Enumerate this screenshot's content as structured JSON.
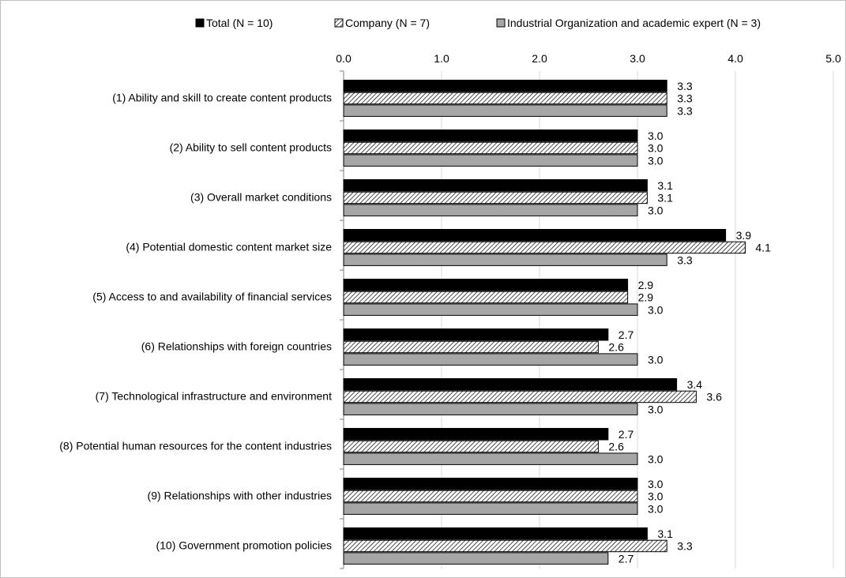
{
  "chart_data": {
    "type": "bar",
    "orientation": "horizontal",
    "categories": [
      "(1) Ability and skill to create content products",
      "(2) Ability to sell content products",
      "(3) Overall market conditions",
      "(4) Potential domestic content market size",
      "(5) Access to and availability of financial services",
      "(6) Relationships with foreign countries",
      "(7) Technological infrastructure and environment",
      "(8) Potential human resources for the content industries",
      "(9) Relationships with other industries",
      "(10) Government promotion policies"
    ],
    "series": [
      {
        "name": "Total (N = 10)",
        "fill": "solid",
        "color": "#000000",
        "values": [
          3.3,
          3.0,
          3.1,
          3.9,
          2.9,
          2.7,
          3.4,
          2.7,
          3.0,
          3.1
        ]
      },
      {
        "name": "Company (N = 7)",
        "fill": "diagonal-hatch",
        "color": "#ffffff",
        "values": [
          3.3,
          3.0,
          3.1,
          4.1,
          2.9,
          2.6,
          3.6,
          2.6,
          3.0,
          3.3
        ]
      },
      {
        "name": "Industrial Organization and academic expert (N = 3)",
        "fill": "solid",
        "color": "#a6a6a6",
        "values": [
          3.3,
          3.0,
          3.0,
          3.3,
          3.0,
          3.0,
          3.0,
          3.0,
          3.0,
          2.7
        ]
      }
    ],
    "xlim": [
      0,
      5
    ],
    "ticks": [
      "0.0",
      "1.0",
      "2.0",
      "3.0",
      "4.0",
      "5.0"
    ],
    "grid": true,
    "legend_position": "top",
    "title": "",
    "xlabel": "",
    "ylabel": ""
  }
}
